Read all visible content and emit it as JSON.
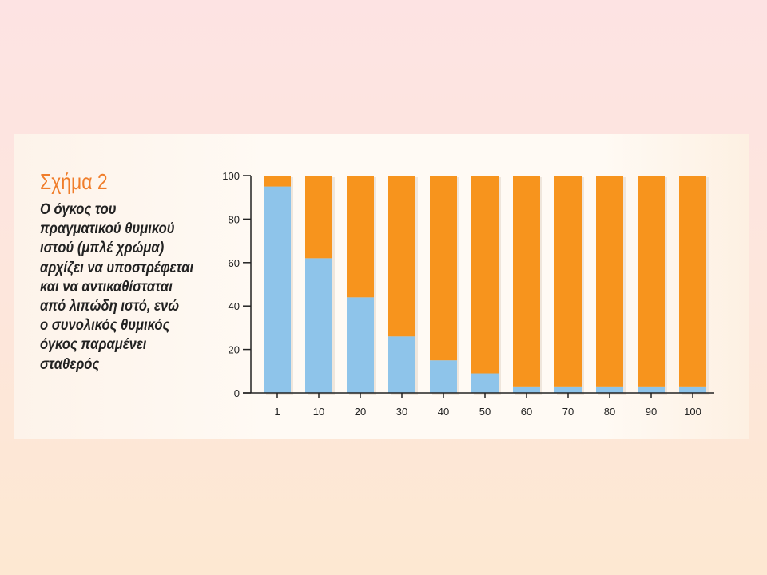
{
  "figure": {
    "title": "Σχήμα 2",
    "description_lines": [
      "Ο όγκος του",
      "πραγματικού θυμικού",
      "ιστού (μπλέ χρώμα)",
      "αρχίζει να υποστρέφεται",
      "και να αντικαθίσταται",
      "από λιπώδη ιστό, ενώ",
      "ο συνολικός θυμικός",
      "όγκος παραμένει",
      "σταθερός"
    ]
  },
  "chart_data": {
    "type": "bar",
    "stacked": true,
    "categories": [
      "1",
      "10",
      "20",
      "30",
      "40",
      "50",
      "60",
      "70",
      "80",
      "90",
      "100"
    ],
    "series": [
      {
        "name": "",
        "color": "#8ec4ea",
        "values": [
          95,
          62,
          44,
          26,
          15,
          9,
          3,
          3,
          3,
          3,
          3
        ]
      },
      {
        "name": "",
        "color": "#f7941d",
        "values": [
          5,
          38,
          56,
          74,
          85,
          91,
          97,
          97,
          97,
          97,
          97
        ]
      }
    ],
    "ylim": [
      0,
      100
    ],
    "yticks": [
      "0",
      "20",
      "40",
      "60",
      "80",
      "100"
    ],
    "xlabel": "",
    "ylabel": "",
    "grid": false
  }
}
